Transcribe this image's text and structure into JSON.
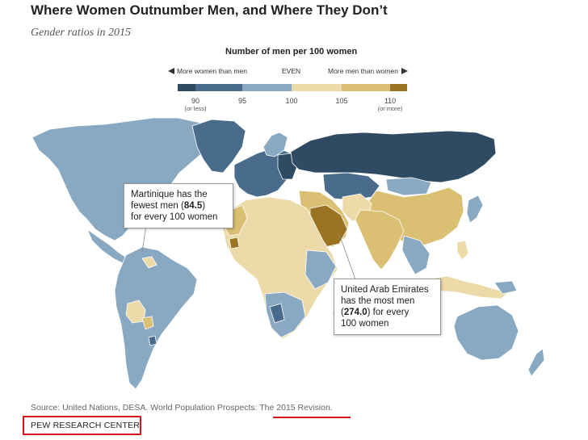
{
  "title": "Where Women Outnumber Men, and Where They Don’t",
  "subtitle": "Gender ratios in 2015",
  "legend": {
    "title": "Number of men per 100 women",
    "left_label": "More women than men",
    "center_label": "EVEN",
    "right_label": "More men than women",
    "ticks": [
      {
        "value": "90",
        "sub": "(or less)"
      },
      {
        "value": "95",
        "sub": ""
      },
      {
        "value": "100",
        "sub": ""
      },
      {
        "value": "105",
        "sub": ""
      },
      {
        "value": "110",
        "sub": "(or more)"
      }
    ],
    "colors": [
      "#2f4a63",
      "#4a6c8c",
      "#89a9c3",
      "#ecdaa8",
      "#dbbf73",
      "#9a7422"
    ]
  },
  "callouts": {
    "martinique": {
      "line1": "Martinique has the",
      "line2_pre": "fewest men (",
      "value": "84.5",
      "line2_post": ")",
      "line3": "for every 100 women"
    },
    "uae": {
      "line1": "United Arab Emirates",
      "line2": "has the most men",
      "line3_pre": "(",
      "value": "274.0",
      "line3_post": ") for every",
      "line4": "100 women"
    }
  },
  "source": {
    "prefix": "Source: United Nations, DESA. World Population Prospects: ",
    "link": "The 2015 Revision",
    "suffix": "."
  },
  "brand": "PEW RESEARCH CENTER"
}
